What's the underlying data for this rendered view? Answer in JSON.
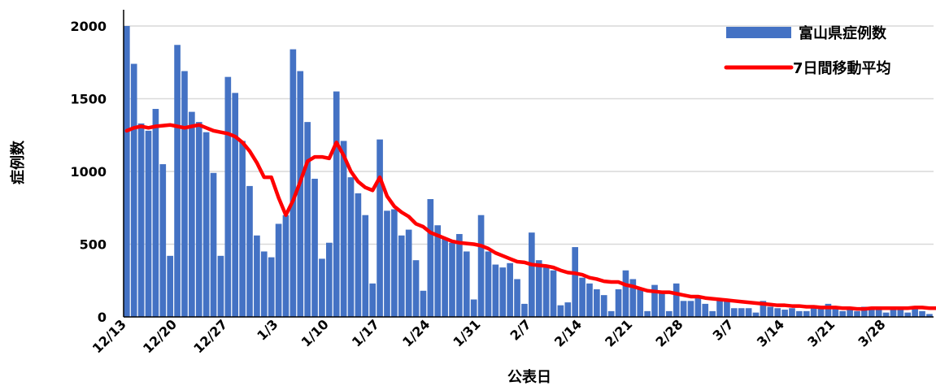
{
  "chart_data": {
    "type": "bar",
    "xlabel": "公表日",
    "ylabel": "症例数",
    "ylim": [
      0,
      2000
    ],
    "yticks": [
      0,
      500,
      1000,
      1500,
      2000
    ],
    "grid": "horizontal",
    "legend_position": "top-right",
    "colors": {
      "bar": "#4472C4",
      "line": "#FF0000",
      "grid": "#D9D9D9"
    },
    "x_tick_labels": [
      "12/13",
      "12/20",
      "12/27",
      "1/3",
      "1/10",
      "1/17",
      "1/24",
      "1/31",
      "2/7",
      "2/14",
      "2/21",
      "2/28",
      "3/7",
      "3/14",
      "3/21",
      "3/28"
    ],
    "x_start": "12/13",
    "x_end": "4/3",
    "series": [
      {
        "name": "富山県症例数",
        "kind": "bar",
        "values": [
          2000,
          1740,
          1330,
          1280,
          1430,
          1050,
          420,
          1870,
          1690,
          1410,
          1340,
          1270,
          990,
          420,
          1650,
          1540,
          1210,
          900,
          560,
          450,
          410,
          640,
          700,
          1840,
          1690,
          1340,
          950,
          400,
          510,
          1550,
          1210,
          960,
          850,
          700,
          230,
          1220,
          730,
          740,
          560,
          600,
          390,
          180,
          810,
          630,
          540,
          510,
          570,
          450,
          120,
          700,
          450,
          360,
          340,
          370,
          260,
          90,
          580,
          390,
          340,
          320,
          80,
          100,
          480,
          270,
          230,
          190,
          150,
          40,
          190,
          320,
          260,
          190,
          40,
          220,
          170,
          40,
          230,
          110,
          110,
          130,
          90,
          40,
          110,
          120,
          60,
          60,
          60,
          30,
          110,
          70,
          60,
          50,
          60,
          40,
          40,
          80,
          60,
          90,
          60,
          40,
          60,
          40,
          70,
          60,
          60,
          30,
          60,
          60,
          30,
          60,
          40,
          20
        ]
      },
      {
        "name": "7日間移動平均",
        "kind": "line",
        "values": [
          1280,
          1300,
          1310,
          1300,
          1310,
          1315,
          1320,
          1310,
          1300,
          1310,
          1320,
          1300,
          1280,
          1270,
          1260,
          1240,
          1200,
          1140,
          1060,
          960,
          960,
          820,
          700,
          800,
          930,
          1070,
          1100,
          1100,
          1090,
          1200,
          1110,
          1000,
          930,
          890,
          870,
          960,
          830,
          760,
          720,
          690,
          640,
          620,
          580,
          560,
          540,
          520,
          510,
          505,
          500,
          490,
          470,
          440,
          420,
          400,
          380,
          375,
          360,
          355,
          350,
          340,
          320,
          305,
          300,
          290,
          270,
          260,
          245,
          240,
          240,
          220,
          210,
          195,
          180,
          175,
          170,
          170,
          160,
          150,
          140,
          140,
          130,
          125,
          120,
          115,
          110,
          105,
          100,
          95,
          90,
          85,
          80,
          80,
          75,
          75,
          70,
          70,
          65,
          65,
          65,
          60,
          60,
          55,
          55,
          60,
          60,
          60,
          60,
          60,
          60,
          65,
          65,
          60,
          60,
          55
        ]
      }
    ]
  }
}
